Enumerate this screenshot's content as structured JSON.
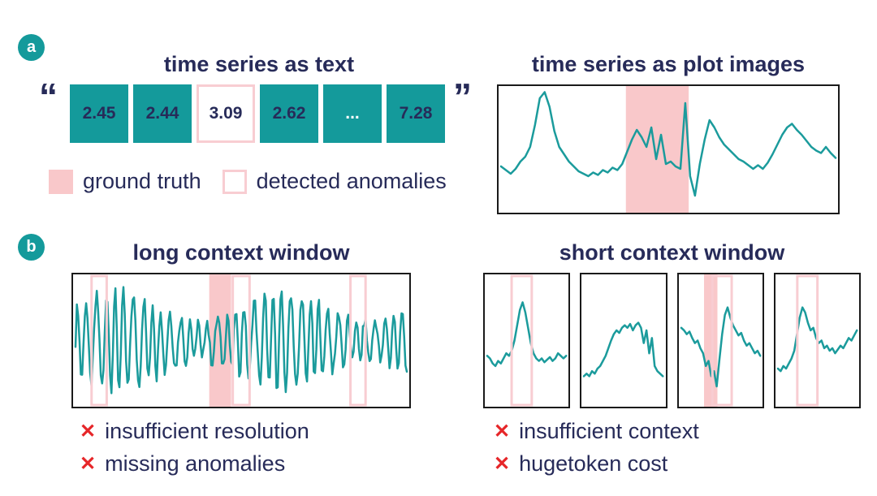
{
  "colors": {
    "teal": "#149a9b",
    "line": "#1b9b9c",
    "navy": "#272b59",
    "pink_fill": "#f9c8ca",
    "pink_border": "#f8cdd2",
    "red": "#e62629",
    "frame": "#1a1a1a"
  },
  "badges": {
    "a": "a",
    "b": "b"
  },
  "section_a": {
    "text_panel": {
      "title": "time series as text",
      "open_quote": "“",
      "close_quote": "”",
      "cells": [
        {
          "value": "2.45",
          "type": "normal"
        },
        {
          "value": "2.44",
          "type": "normal"
        },
        {
          "value": "3.09",
          "type": "anomaly"
        },
        {
          "value": "2.62",
          "type": "normal"
        },
        {
          "value": "...",
          "type": "ellipsis"
        },
        {
          "value": "7.28",
          "type": "normal"
        }
      ],
      "legend": [
        {
          "swatch": "ground-truth",
          "label": "ground truth"
        },
        {
          "swatch": "detected-anomalies",
          "label": "detected anomalies"
        }
      ]
    },
    "plot_panel": {
      "title": "time series as plot images"
    }
  },
  "section_b": {
    "long": {
      "title": "long context window",
      "issues": [
        {
          "mark": "✕",
          "label": "insufficient resolution"
        },
        {
          "mark": "✕",
          "label": "missing anomalies"
        }
      ]
    },
    "short": {
      "title": "short context window",
      "issues": [
        {
          "mark": "✕",
          "label": "insufficient context"
        },
        {
          "mark": "✕",
          "label": "hugetoken cost"
        }
      ]
    }
  },
  "chart_data": [
    {
      "id": "plot-images",
      "type": "line",
      "title": "time series as plot images",
      "x_range": [
        0,
        1
      ],
      "y_range": [
        0,
        100
      ],
      "ground_truth": [
        [
          0.375,
          0.56
        ]
      ],
      "detected": [],
      "points": [
        36,
        33,
        30,
        34,
        40,
        44,
        52,
        70,
        92,
        97,
        85,
        65,
        52,
        46,
        40,
        36,
        32,
        30,
        28,
        31,
        29,
        33,
        31,
        35,
        33,
        38,
        48,
        58,
        66,
        60,
        52,
        68,
        42,
        62,
        38,
        40,
        36,
        34,
        88,
        28,
        12,
        38,
        58,
        74,
        68,
        60,
        54,
        50,
        46,
        42,
        40,
        37,
        34,
        37,
        34,
        39,
        46,
        54,
        62,
        68,
        71,
        66,
        62,
        57,
        52,
        49,
        47,
        52,
        47,
        43
      ]
    },
    {
      "id": "long-context",
      "type": "line",
      "title": "long context window",
      "x_range": [
        0,
        1
      ],
      "y_range": [
        0,
        100
      ],
      "ground_truth": [
        [
          0.405,
          0.47
        ]
      ],
      "detected": [
        [
          0.055,
          0.1
        ],
        [
          0.475,
          0.525
        ],
        [
          0.825,
          0.87
        ]
      ],
      "generator": {
        "kind": "dense-osc",
        "n": 250,
        "base": 50,
        "amp": 27,
        "ampMod": 11,
        "freq": 0.9,
        "noise": 10
      }
    },
    {
      "id": "short-1",
      "type": "line",
      "title": "short context window 1",
      "x_range": [
        0,
        1
      ],
      "y_range": [
        0,
        100
      ],
      "ground_truth": [],
      "detected": [
        [
          0.32,
          0.56
        ]
      ],
      "points": [
        38,
        36,
        32,
        30,
        34,
        32,
        36,
        40,
        38,
        42,
        50,
        62,
        74,
        80,
        72,
        60,
        48,
        40,
        36,
        34,
        36,
        33,
        35,
        37,
        34,
        36,
        40,
        38,
        36,
        38
      ]
    },
    {
      "id": "short-2",
      "type": "line",
      "title": "short context window 2",
      "x_range": [
        0,
        1
      ],
      "y_range": [
        0,
        100
      ],
      "ground_truth": [],
      "detected": [],
      "points": [
        22,
        24,
        22,
        26,
        24,
        28,
        30,
        34,
        38,
        44,
        50,
        55,
        58,
        56,
        60,
        62,
        60,
        63,
        58,
        62,
        64,
        60,
        48,
        58,
        40,
        52,
        30,
        26,
        24,
        22
      ]
    },
    {
      "id": "short-3",
      "type": "line",
      "title": "short context window 3",
      "x_range": [
        0,
        1
      ],
      "y_range": [
        0,
        100
      ],
      "ground_truth": [
        [
          0.3,
          0.46
        ]
      ],
      "detected": [
        [
          0.4,
          0.63
        ]
      ],
      "points": [
        60,
        58,
        55,
        57,
        52,
        48,
        50,
        44,
        40,
        30,
        34,
        22,
        26,
        14,
        35,
        55,
        70,
        76,
        68,
        62,
        58,
        54,
        56,
        50,
        46,
        48,
        44,
        40,
        42,
        38
      ]
    },
    {
      "id": "short-4",
      "type": "line",
      "title": "short context window 4",
      "x_range": [
        0,
        1
      ],
      "y_range": [
        0,
        100
      ],
      "ground_truth": [],
      "detected": [
        [
          0.26,
          0.5
        ]
      ],
      "points": [
        28,
        26,
        30,
        28,
        32,
        36,
        42,
        55,
        68,
        76,
        72,
        64,
        58,
        60,
        52,
        48,
        50,
        44,
        46,
        42,
        44,
        40,
        43,
        46,
        44,
        48,
        52,
        50,
        54,
        58
      ]
    }
  ]
}
